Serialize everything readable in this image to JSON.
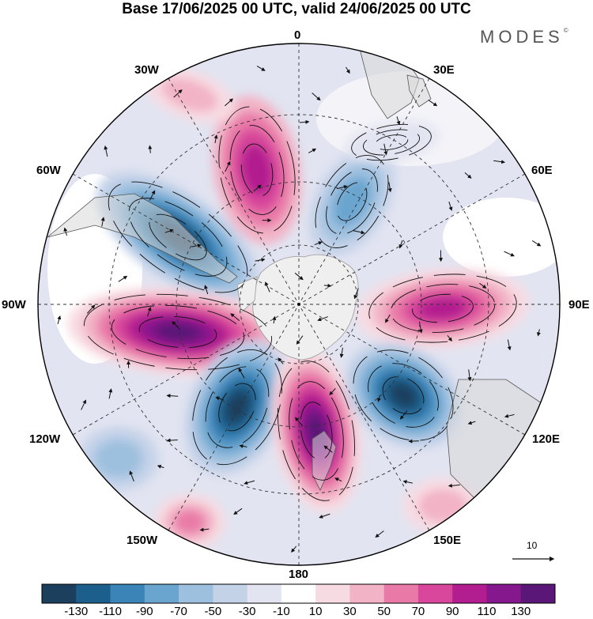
{
  "title": "Base 17/06/2025 00 UTC, valid 24/06/2025 00 UTC",
  "brand": "MODES",
  "brand_mark": "©",
  "longitude_labels": {
    "top": "0",
    "bottom": "180",
    "left": "90W",
    "right": "90E",
    "w30": "30W",
    "e30": "30E",
    "w60": "60W",
    "e60": "60E",
    "w120": "120W",
    "e120": "120E",
    "w150": "150W",
    "e150": "150E"
  },
  "vector_scale_label": "10",
  "colorbar": {
    "ticks": [
      "-130",
      "-110",
      "-90",
      "-70",
      "-50",
      "-30",
      "-10",
      "10",
      "30",
      "50",
      "70",
      "90",
      "110",
      "130"
    ],
    "colors": [
      "#1c3f5e",
      "#1d5f8c",
      "#3b84b8",
      "#6aa5cf",
      "#9dc0df",
      "#c4d2e8",
      "#e2e4f1",
      "#ffffff",
      "#f7dbe2",
      "#f2b3c6",
      "#e97aa8",
      "#d8479b",
      "#b21d8f",
      "#86188d",
      "#5a1777"
    ]
  },
  "colors": {
    "land": "#d8d8d8",
    "antarctica": "#efefef",
    "positive_strong": "#5a1777",
    "negative_strong": "#1c3f5e"
  }
}
